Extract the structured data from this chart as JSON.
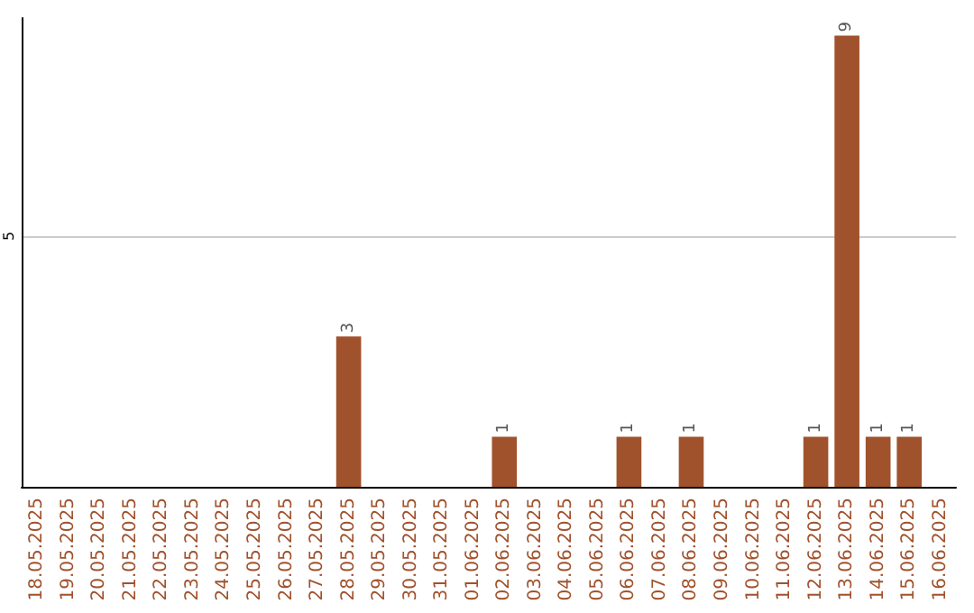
{
  "chart_data": {
    "type": "bar",
    "categories": [
      "18.05.2025",
      "19.05.2025",
      "20.05.2025",
      "21.05.2025",
      "22.05.2025",
      "23.05.2025",
      "24.05.2025",
      "25.05.2025",
      "26.05.2025",
      "27.05.2025",
      "28.05.2025",
      "29.05.2025",
      "30.05.2025",
      "31.05.2025",
      "01.06.2025",
      "02.06.2025",
      "03.06.2025",
      "04.06.2025",
      "05.06.2025",
      "06.06.2025",
      "07.06.2025",
      "08.06.2025",
      "09.06.2025",
      "10.06.2025",
      "11.06.2025",
      "12.06.2025",
      "13.06.2025",
      "14.06.2025",
      "15.06.2025",
      "16.06.2025"
    ],
    "values": [
      0,
      0,
      0,
      0,
      0,
      0,
      0,
      0,
      0,
      0,
      3,
      0,
      0,
      0,
      0,
      1,
      0,
      0,
      0,
      1,
      0,
      1,
      0,
      0,
      0,
      1,
      9,
      1,
      1,
      0
    ],
    "value_labels": [
      null,
      null,
      null,
      null,
      null,
      null,
      null,
      null,
      null,
      null,
      "3",
      null,
      null,
      null,
      null,
      "1",
      null,
      null,
      null,
      "1",
      null,
      "1",
      null,
      null,
      null,
      "1",
      "9",
      "1",
      "1",
      null
    ],
    "color": "#a0522d",
    "ylim": [
      0,
      9.35
    ],
    "yticks": [
      5
    ],
    "grid": "y"
  }
}
